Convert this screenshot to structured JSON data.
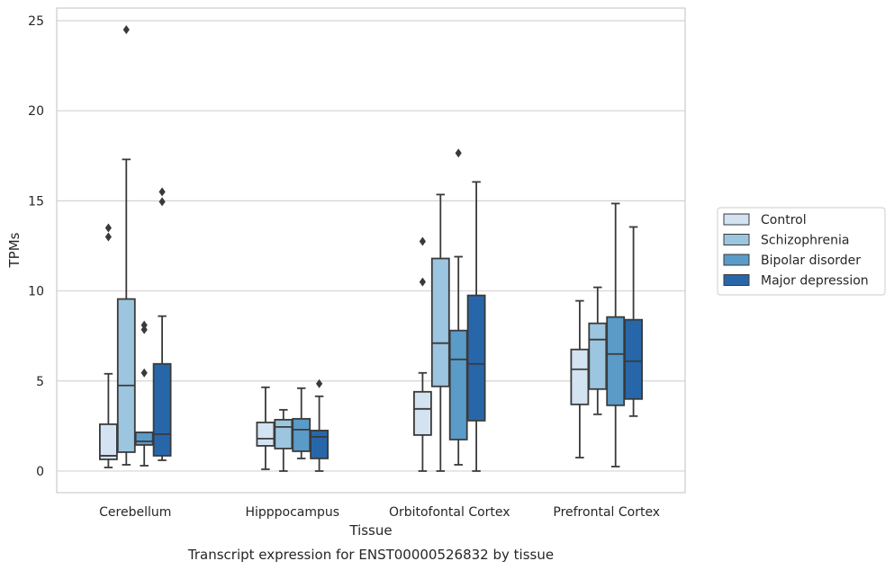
{
  "caption": "Transcript expression for ENST00000526832 by tissue",
  "chart_data": {
    "type": "boxplot",
    "xlabel": "Tissue",
    "ylabel": "TPMs",
    "ylim": [
      -1.2,
      25.7
    ],
    "yticks": [
      0,
      5,
      10,
      15,
      20,
      25
    ],
    "grid": true,
    "legend_position": "right",
    "categories": [
      "Cerebellum",
      "Hipppocampus",
      "Orbitofontal Cortex",
      "Prefrontal Cortex"
    ],
    "series": [
      {
        "name": "Control",
        "color": "#d3e3f2",
        "boxes": [
          {
            "whislo": 0.2,
            "q1": 0.65,
            "med": 0.85,
            "q3": 2.6,
            "whishi": 5.4,
            "fliers": [
              13.0,
              13.5
            ]
          },
          {
            "whislo": 0.1,
            "q1": 1.4,
            "med": 1.8,
            "q3": 2.7,
            "whishi": 4.65,
            "fliers": []
          },
          {
            "whislo": 0.0,
            "q1": 2.0,
            "med": 3.45,
            "q3": 4.4,
            "whishi": 5.45,
            "fliers": [
              10.5,
              12.75
            ]
          },
          {
            "whislo": 0.75,
            "q1": 3.7,
            "med": 5.65,
            "q3": 6.75,
            "whishi": 9.45,
            "fliers": []
          }
        ]
      },
      {
        "name": "Schizophrenia",
        "color": "#9cc5e0",
        "boxes": [
          {
            "whislo": 0.35,
            "q1": 1.05,
            "med": 4.75,
            "q3": 9.55,
            "whishi": 17.3,
            "fliers": [
              24.5
            ]
          },
          {
            "whislo": 0.0,
            "q1": 1.25,
            "med": 2.45,
            "q3": 2.85,
            "whishi": 3.4,
            "fliers": []
          },
          {
            "whislo": 0.0,
            "q1": 4.7,
            "med": 7.1,
            "q3": 11.8,
            "whishi": 15.35,
            "fliers": []
          },
          {
            "whislo": 3.15,
            "q1": 4.55,
            "med": 7.3,
            "q3": 8.2,
            "whishi": 10.2,
            "fliers": []
          }
        ]
      },
      {
        "name": "Bipolar disorder",
        "color": "#5a9bc8",
        "boxes": [
          {
            "whislo": 0.3,
            "q1": 1.45,
            "med": 1.65,
            "q3": 2.15,
            "whishi": 2.15,
            "fliers": [
              5.45,
              7.85,
              8.1
            ]
          },
          {
            "whislo": 0.7,
            "q1": 1.1,
            "med": 2.3,
            "q3": 2.9,
            "whishi": 4.6,
            "fliers": []
          },
          {
            "whislo": 0.35,
            "q1": 1.75,
            "med": 6.2,
            "q3": 7.8,
            "whishi": 11.9,
            "fliers": [
              17.65
            ]
          },
          {
            "whislo": 0.25,
            "q1": 3.65,
            "med": 6.5,
            "q3": 8.55,
            "whishi": 14.85,
            "fliers": []
          }
        ]
      },
      {
        "name": "Major depression",
        "color": "#2767a9",
        "boxes": [
          {
            "whislo": 0.6,
            "q1": 0.85,
            "med": 2.05,
            "q3": 5.95,
            "whishi": 8.6,
            "fliers": [
              14.95,
              15.5
            ]
          },
          {
            "whislo": 0.0,
            "q1": 0.7,
            "med": 1.9,
            "q3": 2.25,
            "whishi": 4.15,
            "fliers": [
              4.85
            ]
          },
          {
            "whislo": 0.0,
            "q1": 2.8,
            "med": 5.95,
            "q3": 9.75,
            "whishi": 16.05,
            "fliers": []
          },
          {
            "whislo": 3.05,
            "q1": 4.0,
            "med": 6.1,
            "q3": 8.4,
            "whishi": 13.55,
            "fliers": []
          }
        ]
      }
    ]
  }
}
